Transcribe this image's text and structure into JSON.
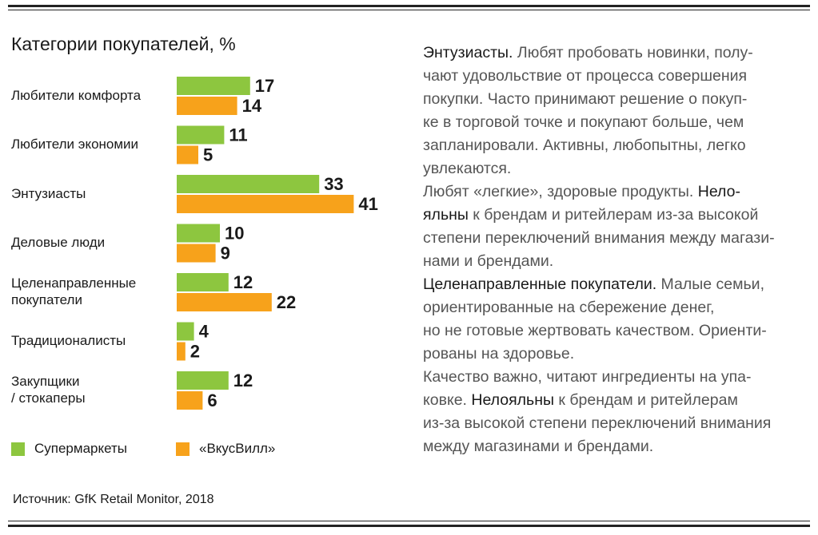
{
  "title": "Категории покупателей, %",
  "chart_data": {
    "type": "bar",
    "orientation": "horizontal",
    "categories": [
      "Любители комфорта",
      "Любители экономии",
      "Энтузиасты",
      "Деловые люди",
      "Целенаправленные покупатели",
      "Традиционалисты",
      "Закупщики / стокаперы"
    ],
    "category_lines": [
      [
        "Любители комфорта"
      ],
      [
        "Любители экономии"
      ],
      [
        "Энтузиасты"
      ],
      [
        "Деловые люди"
      ],
      [
        "Целенаправленные",
        "покупатели"
      ],
      [
        "Традиционалисты"
      ],
      [
        "Закупщики",
        "/ стокаперы"
      ]
    ],
    "series": [
      {
        "name": "Супермаркеты",
        "color": "#8dc63f",
        "values": [
          17,
          11,
          33,
          10,
          12,
          4,
          12
        ]
      },
      {
        "name": "«ВкусВилл»",
        "color": "#f7a21b",
        "values": [
          14,
          5,
          41,
          9,
          22,
          2,
          6
        ]
      }
    ],
    "value_labels": true,
    "grid": false,
    "legend_position": "bottom-left"
  },
  "source": "Источник: GfK Retail Monitor, 2018",
  "description": {
    "paragraphs": [
      [
        [
          {
            "t": "Энтузиасты.",
            "hl": true
          },
          {
            "t": " Любят пробовать новинки, полу-"
          }
        ],
        [
          {
            "t": "чают удовольствие от процесса совершения"
          }
        ],
        [
          {
            "t": "покупки. Часто принимают решение о покуп-"
          }
        ],
        [
          {
            "t": "ке в торговой точке и покупают больше, чем"
          }
        ],
        [
          {
            "t": "запланировали. Активны, любопытны, легко"
          }
        ],
        [
          {
            "t": "увлекаются."
          }
        ],
        [
          {
            "t": "Любят «легкие», здоровые продукты. "
          },
          {
            "t": "Нело-",
            "hl": true
          }
        ],
        [
          {
            "t": "яльны",
            "hl": true
          },
          {
            "t": " к брендам и ритейлерам из-за высокой"
          }
        ],
        [
          {
            "t": "степени переключений внимания между магази-"
          }
        ],
        [
          {
            "t": "нами и брендами."
          }
        ]
      ],
      [
        [
          {
            "t": "Целенаправленные покупатели.",
            "hl": true
          },
          {
            "t": " Малые семьи,"
          }
        ],
        [
          {
            "t": "ориентированные на сбережение денег,"
          }
        ],
        [
          {
            "t": "но не готовые жертвовать качеством. Ориенти-"
          }
        ],
        [
          {
            "t": "рованы на здоровье."
          }
        ],
        [
          {
            "t": "Качество важно, читают ингредиенты на упа-"
          }
        ],
        [
          {
            "t": "ковке. "
          },
          {
            "t": "Нелояльны",
            "hl": true
          },
          {
            "t": " к брендам и ритейлерам"
          }
        ],
        [
          {
            "t": "из-за высокой степени переключений внимания"
          }
        ],
        [
          {
            "t": "между магазинами и брендами."
          }
        ]
      ]
    ]
  }
}
